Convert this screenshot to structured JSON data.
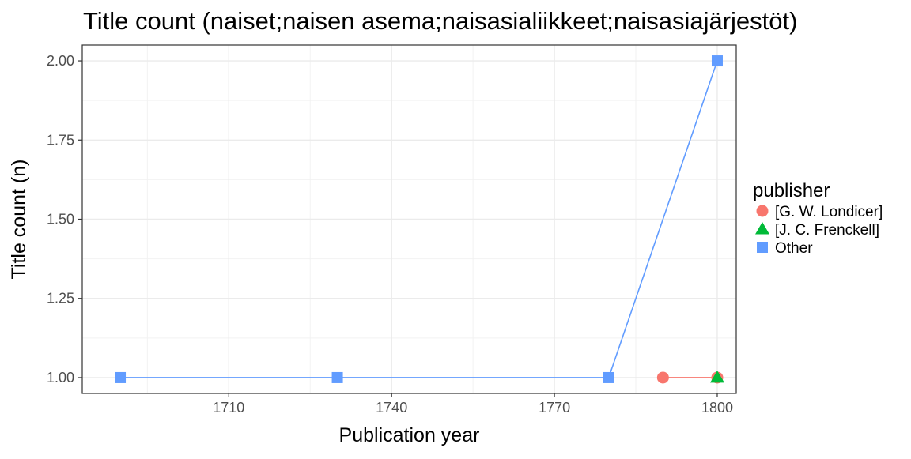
{
  "chart_data": {
    "type": "line",
    "title": "Title count (naiset;naisen asema;naisasialiikkeet;naisasiajärjestöt)",
    "xlabel": "Publication year",
    "ylabel": "Title count (n)",
    "xlim": [
      1683,
      1803.5
    ],
    "ylim": [
      0.95,
      2.05
    ],
    "x_ticks": [
      1710,
      1740,
      1770,
      1800
    ],
    "x_tick_labels": [
      "1710",
      "1740",
      "1770",
      "1800"
    ],
    "y_ticks": [
      1.0,
      1.25,
      1.5,
      1.75,
      2.0
    ],
    "y_tick_labels": [
      "1.00",
      "1.25",
      "1.50",
      "1.75",
      "2.00"
    ],
    "grid": true,
    "legend": {
      "title": "publisher",
      "position": "right"
    },
    "series": [
      {
        "name": "[G. W. Londicer]",
        "color": "#F8766D",
        "marker": "circle",
        "x": [
          1790,
          1800
        ],
        "y": [
          1,
          1
        ]
      },
      {
        "name": "[J. C. Frenckell]",
        "color": "#00BA38",
        "marker": "triangle",
        "x": [
          1800
        ],
        "y": [
          1
        ]
      },
      {
        "name": "Other",
        "color": "#619CFF",
        "marker": "square",
        "x": [
          1690,
          1730,
          1780,
          1800
        ],
        "y": [
          1,
          1,
          1,
          2
        ]
      }
    ]
  }
}
